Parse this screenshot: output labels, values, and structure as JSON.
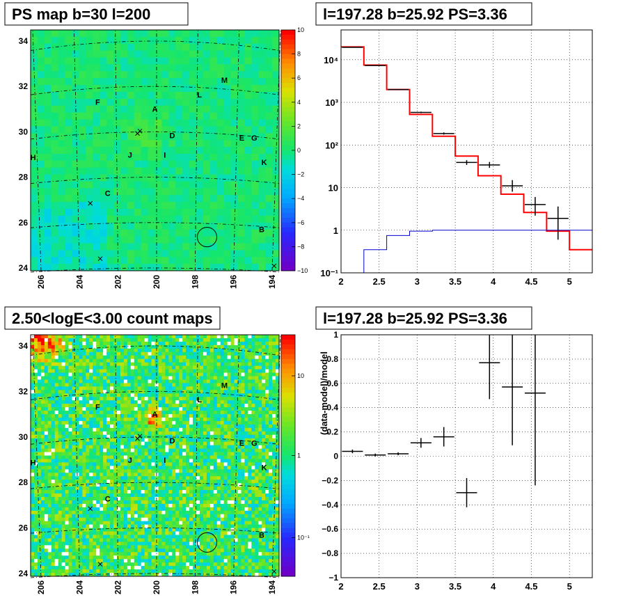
{
  "chart_data": [
    {
      "type": "heatmap",
      "title": "PS map b=30 l=200",
      "x_ticks": [
        "206",
        "204",
        "202",
        "200",
        "198",
        "196",
        "194"
      ],
      "y_ticks": [
        "24",
        "26",
        "28",
        "30",
        "32",
        "34"
      ],
      "colorbar_ticks": [
        "10",
        "8",
        "6",
        "4",
        "2",
        "0",
        "−2",
        "−4",
        "−6",
        "−8",
        "−10"
      ],
      "colorbar_range": [
        -10,
        10
      ],
      "sources": [
        "M",
        "L",
        "F",
        "A",
        "D",
        "E",
        "G",
        "H",
        "J",
        "I",
        "K",
        "C",
        "B"
      ],
      "circle_source": "B",
      "base_color": "#22e85a",
      "grid": true
    },
    {
      "type": "line",
      "title": "l=197.28 b=25.92 PS=3.36",
      "xlim": [
        2,
        5.3
      ],
      "ylim": [
        0.1,
        50000
      ],
      "y_scale": "log",
      "x_ticks": [
        "2",
        "2.5",
        "3",
        "3.5",
        "4",
        "4.5",
        "5"
      ],
      "y_ticks": [
        "10⁻¹",
        "1",
        "10",
        "10²",
        "10³",
        "10⁴"
      ],
      "grid": true,
      "series": [
        {
          "color": "#ff0000",
          "style": "step",
          "edges": [
            2.0,
            2.3,
            2.6,
            2.9,
            3.2,
            3.5,
            3.8,
            4.1,
            4.4,
            4.7,
            5.0,
            5.3
          ],
          "values": [
            20000,
            7500,
            2000,
            520,
            160,
            55,
            19,
            7,
            2.6,
            0.95,
            0.35
          ]
        },
        {
          "color": "#0000cc",
          "style": "step",
          "edges": [
            2.0,
            2.3,
            2.6,
            2.9,
            3.2,
            3.5,
            3.8,
            4.1,
            4.4,
            4.7,
            5.0,
            5.3
          ],
          "values": [
            0.1,
            0.35,
            0.75,
            0.95,
            1.0,
            1.0,
            1.0,
            1.0,
            1.0,
            1.0,
            1.0
          ]
        },
        {
          "color": "#000000",
          "style": "errorbar",
          "points": [
            {
              "x": 2.15,
              "y": 19500,
              "ylo": 19300,
              "yhi": 19700
            },
            {
              "x": 2.45,
              "y": 7300,
              "ylo": 7200,
              "yhi": 7400
            },
            {
              "x": 2.75,
              "y": 2000,
              "ylo": 1950,
              "yhi": 2050
            },
            {
              "x": 3.05,
              "y": 580,
              "ylo": 560,
              "yhi": 605
            },
            {
              "x": 3.35,
              "y": 185,
              "ylo": 175,
              "yhi": 197
            },
            {
              "x": 3.65,
              "y": 39,
              "ylo": 34,
              "yhi": 44
            },
            {
              "x": 3.95,
              "y": 34,
              "ylo": 29,
              "yhi": 40
            },
            {
              "x": 4.25,
              "y": 11,
              "ylo": 8,
              "yhi": 15
            },
            {
              "x": 4.55,
              "y": 4,
              "ylo": 2.2,
              "yhi": 6
            },
            {
              "x": 4.85,
              "y": 1.9,
              "ylo": 0.6,
              "yhi": 3.6
            }
          ]
        }
      ]
    },
    {
      "type": "heatmap",
      "title": "2.50<logE<3.00 count maps",
      "x_ticks": [
        "206",
        "204",
        "202",
        "200",
        "198",
        "196",
        "194"
      ],
      "y_ticks": [
        "24",
        "26",
        "28",
        "30",
        "32",
        "34"
      ],
      "colorbar_ticks": [
        "10",
        "1",
        "10⁻¹"
      ],
      "colorbar_scale": "log",
      "sources": [
        "M",
        "L",
        "F",
        "A",
        "D",
        "E",
        "G",
        "H",
        "J",
        "I",
        "K",
        "C",
        "B"
      ],
      "circle_source": "B",
      "grid": true
    },
    {
      "type": "scatter",
      "title": "l=197.28 b=25.92 PS=3.36",
      "ylabel": "(data-model)/model",
      "xlim": [
        2,
        5.3
      ],
      "ylim": [
        -1,
        1
      ],
      "x_ticks": [
        "2",
        "2.5",
        "3",
        "3.5",
        "4",
        "4.5",
        "5"
      ],
      "y_ticks": [
        "1",
        "0.8",
        "0.6",
        "0.4",
        "0.2",
        "0",
        "−0.2",
        "−0.4",
        "−0.6",
        "−0.8",
        "−1"
      ],
      "grid": true,
      "points": [
        {
          "x": 2.15,
          "y": 0.04,
          "yerr": 0.015
        },
        {
          "x": 2.45,
          "y": 0.01,
          "yerr": 0.012
        },
        {
          "x": 2.75,
          "y": 0.02,
          "yerr": 0.012
        },
        {
          "x": 3.05,
          "y": 0.11,
          "yerr": 0.04
        },
        {
          "x": 3.35,
          "y": 0.16,
          "yerr": 0.08
        },
        {
          "x": 3.65,
          "y": -0.3,
          "yerr": 0.12
        },
        {
          "x": 3.95,
          "y": 0.77,
          "yerr": 0.3
        },
        {
          "x": 4.25,
          "y": 0.57,
          "yerr": 0.48
        },
        {
          "x": 4.55,
          "y": 0.52,
          "yerr": 0.76
        }
      ]
    }
  ]
}
